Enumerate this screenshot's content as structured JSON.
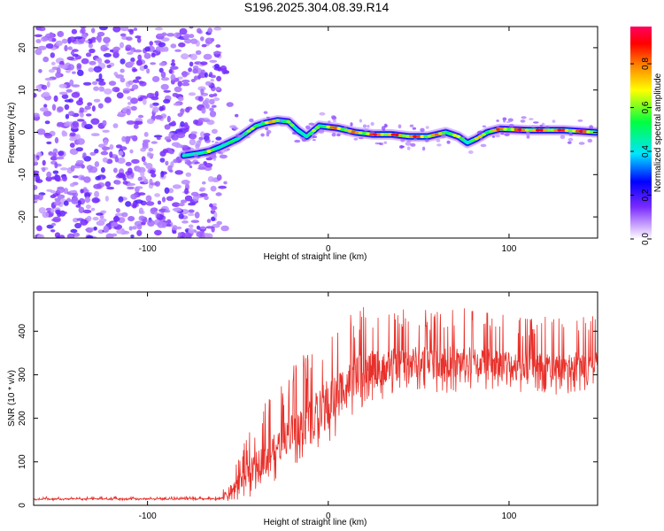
{
  "figure_title": "S196.2025.304.08.39.R14",
  "chart_data": [
    {
      "type": "heatmap",
      "title": "S196.2025.304.08.39.R14",
      "xlabel": "Height of straight line (km)",
      "ylabel": "Frequency (Hz)",
      "xlim": [
        -163,
        149
      ],
      "ylim": [
        -25,
        25
      ],
      "x_ticks": [
        -100,
        0,
        100
      ],
      "y_ticks": [
        -20,
        -10,
        0,
        10,
        20
      ],
      "colorbar": {
        "label": "Normalized spectral amplitude",
        "range": [
          0,
          0.97
        ],
        "ticks": [
          0.0,
          0.2,
          0.4,
          0.6,
          0.8
        ],
        "tick_labels": [
          "0.0",
          "0.2",
          "0.4",
          "0.6",
          "0.8"
        ],
        "colormap": [
          "#ffffff",
          "#d6b8ff",
          "#7a2bff",
          "#0000ff",
          "#00e5ff",
          "#00ff40",
          "#ffff00",
          "#ff8000",
          "#ff0000",
          "#ff0060"
        ]
      },
      "noise_region_x": [
        -163,
        -60
      ],
      "ridge": {
        "x": [
          -80,
          -72,
          -66,
          -60,
          -50,
          -40,
          -35,
          -28,
          -22,
          -17,
          -12,
          -5,
          5,
          15,
          25,
          35,
          45,
          55,
          65,
          72,
          77,
          82,
          88,
          95,
          110,
          130,
          148
        ],
        "freq": [
          -5.5,
          -5.0,
          -4.5,
          -3.5,
          -1.5,
          1.5,
          2.2,
          2.8,
          2.5,
          0.5,
          -1.0,
          1.5,
          1.0,
          0.0,
          -0.5,
          -0.5,
          -1.0,
          -1.0,
          0.0,
          -1.0,
          -2.5,
          -1.5,
          0.0,
          0.8,
          0.5,
          0.5,
          0.0
        ],
        "amp": [
          0.3,
          0.5,
          0.7,
          0.5,
          0.6,
          0.7,
          0.8,
          0.8,
          0.7,
          0.5,
          0.55,
          0.75,
          0.9,
          0.85,
          0.95,
          0.95,
          0.95,
          0.9,
          0.8,
          0.7,
          0.65,
          0.75,
          0.85,
          0.9,
          0.95,
          0.95,
          0.95
        ]
      }
    },
    {
      "type": "line",
      "xlabel": "Height of straight line (km)",
      "ylabel": "SNR (10 * v/v)",
      "xlim": [
        -163,
        149
      ],
      "ylim": [
        0,
        490
      ],
      "x_ticks": [
        -100,
        0,
        100
      ],
      "y_ticks": [
        0,
        100,
        200,
        300,
        400
      ],
      "series": [
        {
          "name": "SNR",
          "color": "#e8302a",
          "envelope_x": [
            -163,
            -60,
            -55,
            -45,
            -35,
            -25,
            -15,
            -5,
            0,
            10,
            20,
            30,
            50,
            70,
            90,
            110,
            130,
            149
          ],
          "envelope_baseline": [
            15,
            15,
            30,
            70,
            110,
            150,
            190,
            220,
            240,
            280,
            310,
            320,
            330,
            330,
            330,
            320,
            320,
            330
          ],
          "spike_heights": [
            5,
            5,
            40,
            90,
            120,
            130,
            150,
            150,
            190,
            150,
            140,
            130,
            120,
            120,
            110,
            110,
            110,
            100
          ]
        }
      ]
    }
  ]
}
